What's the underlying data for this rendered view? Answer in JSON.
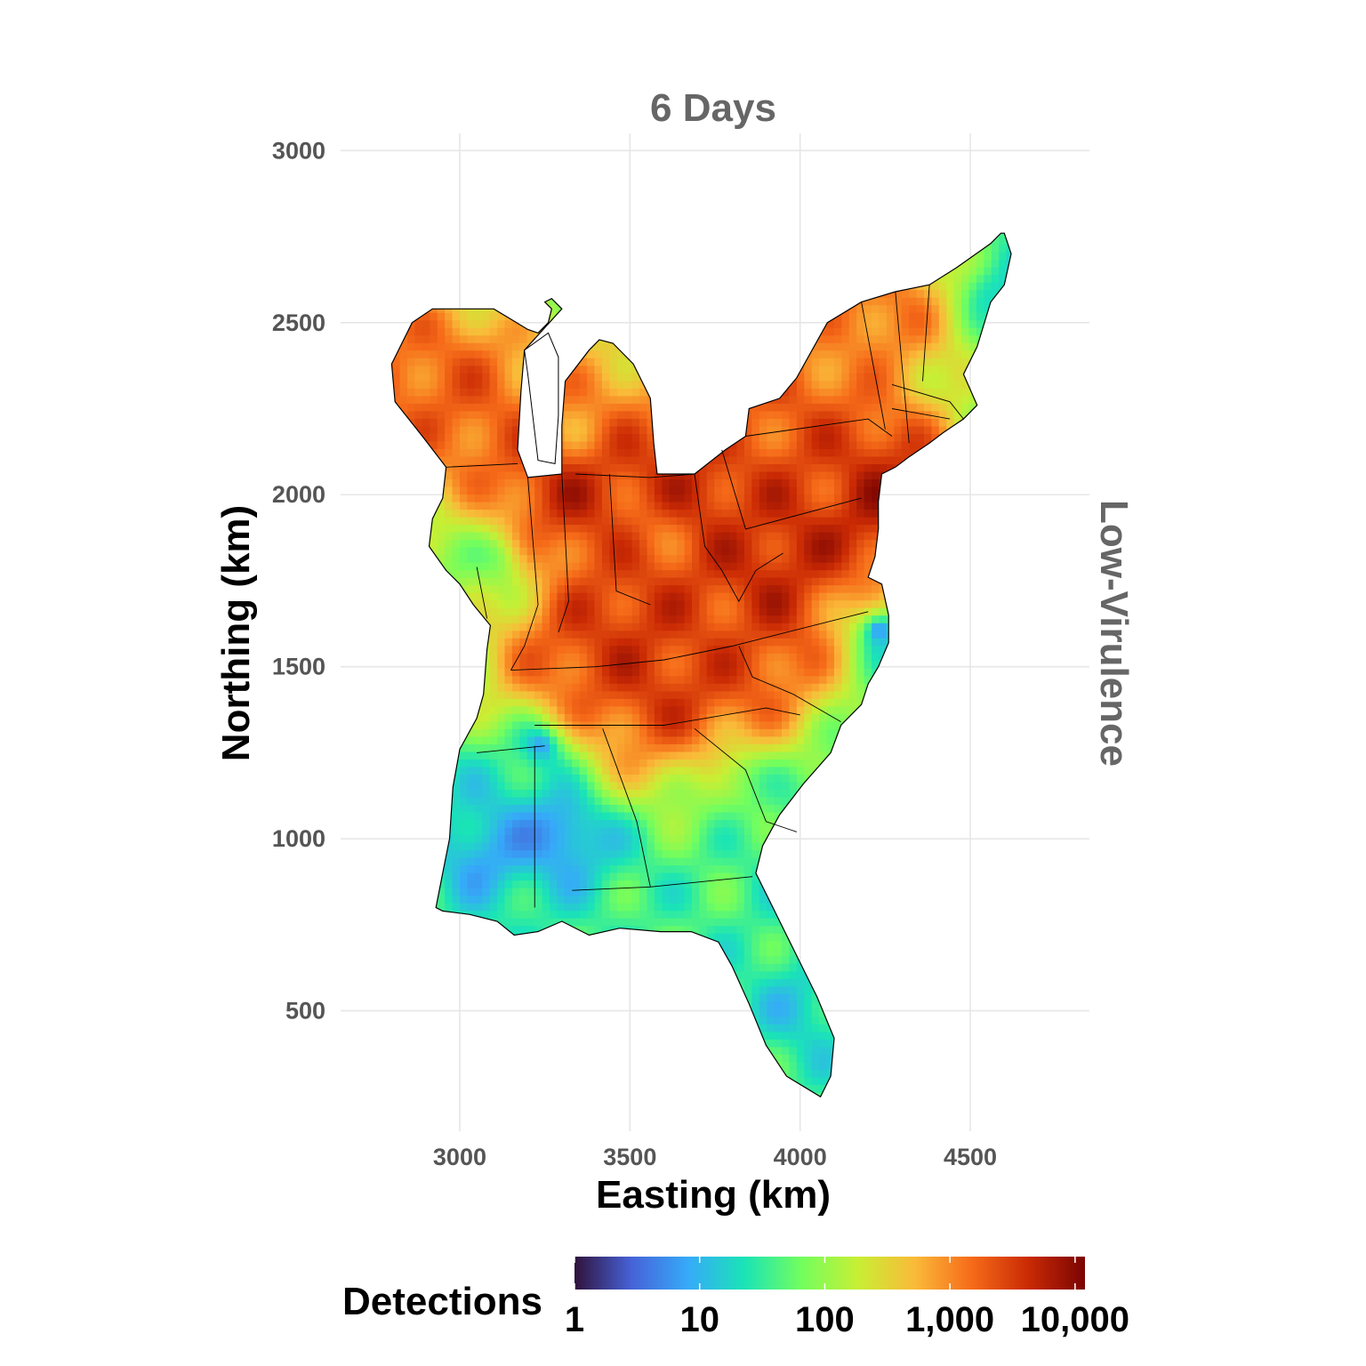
{
  "chart_data": {
    "type": "heatmap",
    "title": "6 Days",
    "facet_label": "Low-Virulence",
    "xlabel": "Easting (km)",
    "ylabel": "Northing (km)",
    "xlim": [
      2650,
      4850
    ],
    "ylim": [
      150,
      3050
    ],
    "x_ticks": [
      3000,
      3500,
      4000,
      4500
    ],
    "y_ticks": [
      500,
      1000,
      1500,
      2000,
      2500,
      3000
    ],
    "x_tick_labels": [
      "3000",
      "3500",
      "4000",
      "4500"
    ],
    "y_tick_labels": [
      "500",
      "1000",
      "1500",
      "2000",
      "2500",
      "3000"
    ],
    "grid": true,
    "legend": {
      "title": "Detections",
      "position": "bottom",
      "scale": "log10",
      "range": [
        1,
        12000
      ],
      "breaks": [
        1,
        10,
        100,
        1000,
        10000
      ],
      "labels": [
        "1",
        "10",
        "100",
        "1,000",
        "10,000"
      ],
      "colormap": [
        "#30123b",
        "#4662d7",
        "#36aaf9",
        "#1ae4b6",
        "#72fe5e",
        "#c8ef34",
        "#faba39",
        "#f66b19",
        "#ca2a04",
        "#7a0403"
      ]
    },
    "hotspots": [
      {
        "x": 2870,
        "y": 2330,
        "value": 1500
      },
      {
        "x": 3000,
        "y": 2250,
        "value": 1800
      },
      {
        "x": 3340,
        "y": 2000,
        "value": 7000
      },
      {
        "x": 3360,
        "y": 2200,
        "value": 900
      },
      {
        "x": 3670,
        "y": 1950,
        "value": 6000
      },
      {
        "x": 3560,
        "y": 1850,
        "value": 1200
      },
      {
        "x": 3930,
        "y": 1780,
        "value": 900
      },
      {
        "x": 4150,
        "y": 1970,
        "value": 8000
      },
      {
        "x": 4050,
        "y": 2020,
        "value": 3000
      },
      {
        "x": 3950,
        "y": 2230,
        "value": 2000
      },
      {
        "x": 4220,
        "y": 2540,
        "value": 1500
      },
      {
        "x": 3900,
        "y": 1720,
        "value": 5000
      },
      {
        "x": 3470,
        "y": 1570,
        "value": 4000
      },
      {
        "x": 3380,
        "y": 1500,
        "value": 3000
      },
      {
        "x": 3670,
        "y": 1460,
        "value": 4000
      },
      {
        "x": 3760,
        "y": 1560,
        "value": 2500
      },
      {
        "x": 3230,
        "y": 1260,
        "value": 8
      },
      {
        "x": 3050,
        "y": 950,
        "value": 8
      },
      {
        "x": 3300,
        "y": 1000,
        "value": 5
      },
      {
        "x": 4220,
        "y": 1600,
        "value": 4
      },
      {
        "x": 4000,
        "y": 1000,
        "value": 10
      },
      {
        "x": 4000,
        "y": 500,
        "value": 15
      },
      {
        "x": 4560,
        "y": 2600,
        "value": 20
      },
      {
        "x": 3100,
        "y": 1800,
        "value": 80
      },
      {
        "x": 3800,
        "y": 1150,
        "value": 60
      }
    ]
  }
}
